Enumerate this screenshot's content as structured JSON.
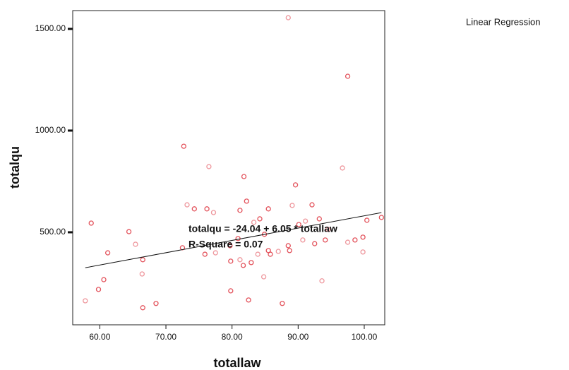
{
  "chart_data": {
    "type": "scatter",
    "title": "Linear Regression",
    "x_label": "totallaw",
    "y_label": "totalqu",
    "annotations": [
      "totalqu = -24.04 + 6.05 * totallaw",
      "R-Square = 0.07"
    ],
    "regression": {
      "intercept": -24.04,
      "slope": 6.05
    },
    "color": "#e0404a",
    "xlim": [
      55.9,
      103.1
    ],
    "ylim": [
      45,
      1590
    ],
    "xticks": [
      {
        "value": 60,
        "label": "60.00"
      },
      {
        "value": 70,
        "label": "70.00"
      },
      {
        "value": 80,
        "label": "80.00"
      },
      {
        "value": 90,
        "label": "90.00"
      },
      {
        "value": 100,
        "label": "100.00"
      }
    ],
    "yticks": [
      {
        "value": 500,
        "label": "500.00"
      },
      {
        "value": 1000,
        "label": "1000.00"
      },
      {
        "value": 1500,
        "label": "1500.00"
      }
    ],
    "x": [
      88.5,
      97.5,
      72.7,
      76.5,
      81.8,
      89.6,
      96.7,
      58.7,
      64.4,
      65.4,
      61.2,
      66.5,
      66.4,
      60.6,
      59.8,
      57.8,
      66.5,
      68.5,
      73.2,
      74.3,
      76.2,
      77.2,
      81.2,
      82.2,
      83.3,
      84.2,
      85.5,
      89.1,
      92.1,
      93.2,
      94.5,
      72.5,
      75.9,
      77.5,
      79.7,
      79.8,
      81.2,
      81.7,
      82.9,
      83.9,
      85.5,
      85.8,
      87.0,
      88.5,
      88.7,
      90.7,
      92.5,
      94.1,
      97.5,
      98.6,
      99.8,
      99.8,
      102.6,
      100.4,
      91.1,
      90.1,
      79.8,
      84.8,
      82.5,
      87.6,
      93.6,
      80.9,
      84.9
    ],
    "y": [
      1555,
      1267,
      923,
      823,
      774,
      733,
      816,
      545,
      503,
      441,
      399,
      365,
      295,
      267,
      219,
      163,
      129,
      150,
      635,
      615,
      615,
      597,
      608,
      653,
      549,
      566,
      615,
      632,
      635,
      566,
      514,
      424,
      392,
      399,
      434,
      358,
      365,
      337,
      351,
      392,
      410,
      392,
      406,
      434,
      410,
      462,
      444,
      462,
      451,
      462,
      476,
      403,
      573,
      559,
      555,
      538,
      212,
      281,
      167,
      150,
      261,
      469,
      490
    ]
  }
}
